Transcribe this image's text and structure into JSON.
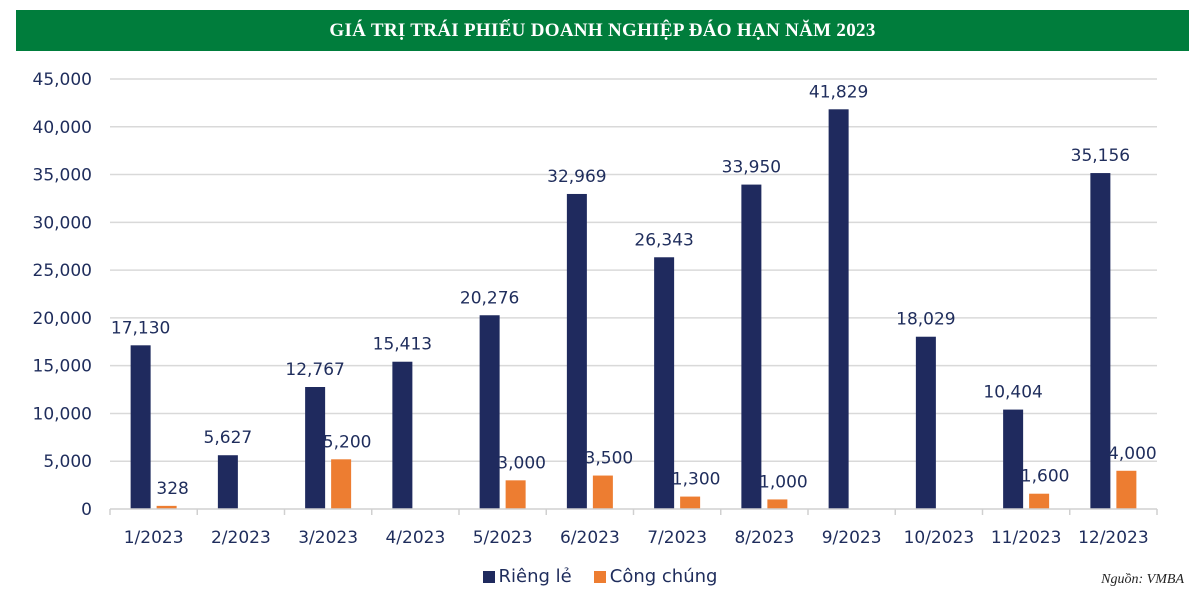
{
  "chart_data": {
    "type": "bar",
    "title": "GIÁ TRỊ TRÁI PHIẾU DOANH NGHIỆP ĐÁO HẠN NĂM 2023",
    "xlabel": "",
    "ylabel": "",
    "ylim": [
      0,
      45000
    ],
    "yticks": [
      0,
      5000,
      10000,
      15000,
      20000,
      25000,
      30000,
      35000,
      40000,
      45000
    ],
    "ytick_labels": [
      "0",
      "5,000",
      "10,000",
      "15,000",
      "20,000",
      "25,000",
      "30,000",
      "35,000",
      "40,000",
      "45,000"
    ],
    "grid": true,
    "legend_position": "bottom-center",
    "categories": [
      "1/2023",
      "2/2023",
      "3/2023",
      "4/2023",
      "5/2023",
      "6/2023",
      "7/2023",
      "8/2023",
      "9/2023",
      "10/2023",
      "11/2023",
      "12/2023"
    ],
    "series": [
      {
        "name": "Riêng lẻ",
        "color": "#1f2a5e",
        "values": [
          17130,
          5627,
          12767,
          15413,
          20276,
          32969,
          26343,
          33950,
          41829,
          18029,
          10404,
          35156
        ],
        "labels": [
          "17,130",
          "5,627",
          "12,767",
          "15,413",
          "20,276",
          "32,969",
          "26,343",
          "33,950",
          "41,829",
          "18,029",
          "10,404",
          "35,156"
        ]
      },
      {
        "name": "Công chúng",
        "color": "#ed7d31",
        "values": [
          328,
          null,
          5200,
          null,
          3000,
          3500,
          1300,
          1000,
          null,
          null,
          1600,
          4000
        ],
        "labels": [
          "328",
          null,
          "5,200",
          null,
          "3,000",
          "3,500",
          "1,300",
          "1,000",
          null,
          null,
          "1,600",
          "4,000"
        ]
      }
    ]
  },
  "header": {
    "title": "GIÁ TRỊ TRÁI PHIẾU DOANH NGHIỆP ĐÁO HẠN NĂM 2023",
    "bar_color": "#007d3c"
  },
  "legend": {
    "items": [
      {
        "label": "Riêng lẻ",
        "color": "#1f2a5e"
      },
      {
        "label": "Công chúng",
        "color": "#ed7d31"
      }
    ]
  },
  "source": "Nguồn: VMBA"
}
